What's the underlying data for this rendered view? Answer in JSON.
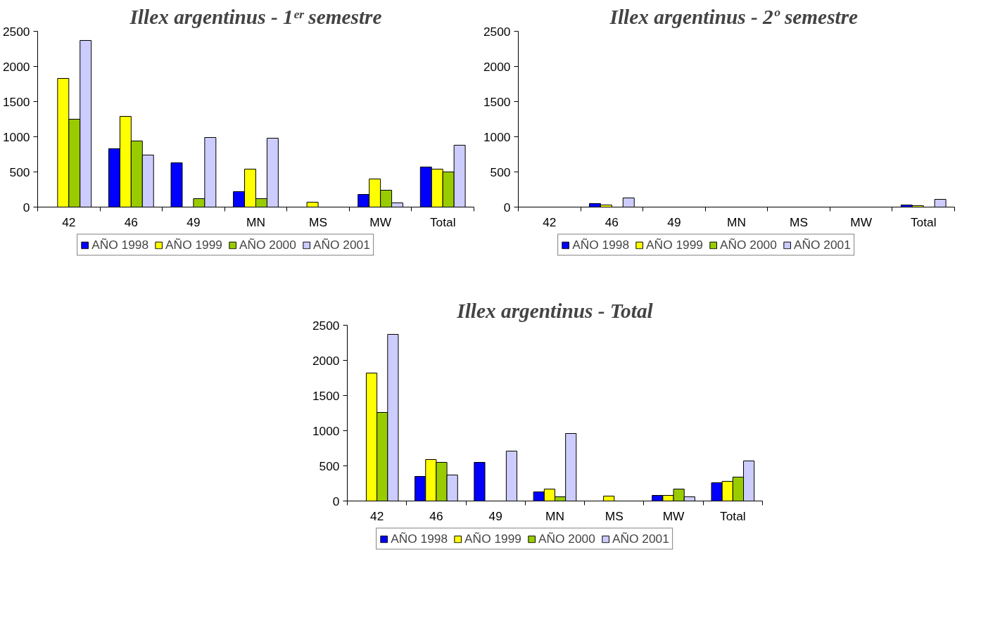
{
  "chart_data": [
    {
      "type": "bar",
      "title": "Illex argentinus - 1ᵉʳ semestre",
      "categories": [
        "42",
        "46",
        "49",
        "MN",
        "MS",
        "MW",
        "Total"
      ],
      "ylim": [
        0,
        2500
      ],
      "yticks": [
        0,
        500,
        1000,
        1500,
        2000,
        2500
      ],
      "grid": false,
      "legend": "bottom",
      "series": [
        {
          "name": "AÑO 1998",
          "color": "#0000ff",
          "values": [
            null,
            830,
            630,
            220,
            null,
            180,
            570
          ]
        },
        {
          "name": "AÑO 1999",
          "color": "#ffff00",
          "values": [
            1830,
            1290,
            null,
            540,
            70,
            400,
            540
          ]
        },
        {
          "name": "AÑO 2000",
          "color": "#99cc00",
          "values": [
            1250,
            940,
            120,
            120,
            null,
            240,
            500
          ]
        },
        {
          "name": "AÑO 2001",
          "color": "#ccccff",
          "values": [
            2370,
            740,
            990,
            980,
            null,
            60,
            880
          ]
        }
      ]
    },
    {
      "type": "bar",
      "title": "Illex argentinus -  2º semestre",
      "categories": [
        "42",
        "46",
        "49",
        "MN",
        "MS",
        "MW",
        "Total"
      ],
      "ylim": [
        0,
        2500
      ],
      "yticks": [
        0,
        500,
        1000,
        1500,
        2000,
        2500
      ],
      "grid": false,
      "legend": "bottom",
      "series": [
        {
          "name": "AÑO 1998",
          "color": "#0000ff",
          "values": [
            null,
            50,
            null,
            null,
            null,
            null,
            30
          ]
        },
        {
          "name": "AÑO 1999",
          "color": "#ffff00",
          "values": [
            null,
            30,
            null,
            null,
            null,
            null,
            20
          ]
        },
        {
          "name": "AÑO 2000",
          "color": "#99cc00",
          "values": [
            null,
            null,
            null,
            null,
            null,
            null,
            null
          ]
        },
        {
          "name": "AÑO 2001",
          "color": "#ccccff",
          "values": [
            null,
            130,
            null,
            null,
            null,
            null,
            110
          ]
        }
      ]
    },
    {
      "type": "bar",
      "title": "Illex argentinus - Total",
      "categories": [
        "42",
        "46",
        "49",
        "MN",
        "MS",
        "MW",
        "Total"
      ],
      "ylim": [
        0,
        2500
      ],
      "yticks": [
        0,
        500,
        1000,
        1500,
        2000,
        2500
      ],
      "grid": false,
      "legend": "bottom",
      "series": [
        {
          "name": "AÑO 1998",
          "color": "#0000ff",
          "values": [
            null,
            350,
            550,
            130,
            null,
            80,
            260
          ]
        },
        {
          "name": "AÑO 1999",
          "color": "#ffff00",
          "values": [
            1820,
            590,
            null,
            170,
            70,
            80,
            280
          ]
        },
        {
          "name": "AÑO 2000",
          "color": "#99cc00",
          "values": [
            1260,
            550,
            null,
            60,
            null,
            170,
            340
          ]
        },
        {
          "name": "AÑO 2001",
          "color": "#ccccff",
          "values": [
            2370,
            370,
            710,
            960,
            null,
            60,
            570
          ]
        }
      ]
    }
  ]
}
